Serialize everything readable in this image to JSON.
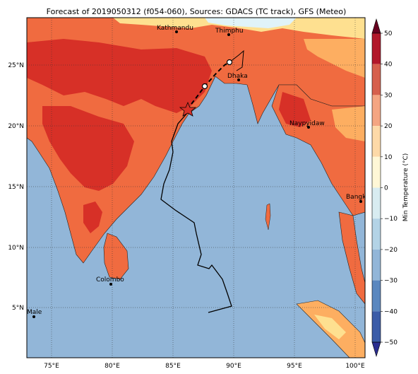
{
  "title": "Forecast of 2019050312 (f054-060), Sources: GDACS (TC track), GFS (Meteo)",
  "colorbar": {
    "label": "Min Temperature (°C)",
    "ticks": [
      "50",
      "40",
      "30",
      "20",
      "10",
      "0",
      "−10",
      "−20",
      "−30",
      "−40",
      "−50"
    ],
    "colors": [
      "#67001f",
      "#b2182b",
      "#d6604d",
      "#f4a582",
      "#fdd9a8",
      "#fff7d6",
      "#d8ecf1",
      "#b3d3e6",
      "#92b6d8",
      "#5a87bf",
      "#3b5ca8",
      "#2a2d8f"
    ]
  },
  "axes": {
    "lon_labels": [
      "75°E",
      "80°E",
      "85°E",
      "90°E",
      "95°E",
      "100°E"
    ],
    "lat_labels": [
      "25°N",
      "20°N",
      "15°N",
      "10°N",
      "5°N"
    ]
  },
  "cities": [
    {
      "name": "Kathmandu"
    },
    {
      "name": "Thimphu"
    },
    {
      "name": "Dhaka"
    },
    {
      "name": "Naypyidaw"
    },
    {
      "name": "Bangkok"
    },
    {
      "name": "Colombo"
    },
    {
      "name": "Male"
    }
  ],
  "palette": {
    "ocean": "#92b6d8",
    "land_hot": "#d73027",
    "land_warm": "#f06b40",
    "land_mild": "#fdae61",
    "land_cool": "#fee090",
    "land_cold": "#e0f3f8"
  }
}
